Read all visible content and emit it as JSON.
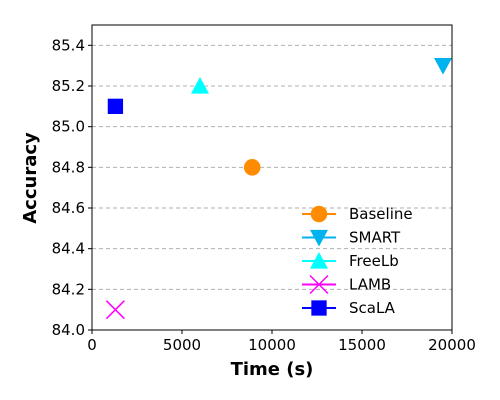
{
  "chart_data": {
    "type": "scatter",
    "title": "",
    "xlabel": "Time (s)",
    "ylabel": "Accuracy",
    "xlim": [
      0,
      20000
    ],
    "ylim": [
      84.0,
      85.5
    ],
    "x_ticks": [
      0,
      5000,
      10000,
      15000,
      20000
    ],
    "y_ticks": [
      84.0,
      84.2,
      84.4,
      84.6,
      84.8,
      85.0,
      85.2,
      85.4
    ],
    "grid": "y-dashed",
    "legend_position": "lower-right",
    "series": [
      {
        "name": "Baseline",
        "marker": "circle",
        "color": "#ff8c00",
        "points": [
          {
            "x": 8900,
            "y": 84.8
          }
        ]
      },
      {
        "name": "SMART",
        "marker": "triangle-down",
        "color": "#00b2ee",
        "points": [
          {
            "x": 19500,
            "y": 85.3
          }
        ]
      },
      {
        "name": "FreeLb",
        "marker": "triangle-up",
        "color": "#00ffff",
        "points": [
          {
            "x": 6000,
            "y": 85.2
          }
        ]
      },
      {
        "name": "LAMB",
        "marker": "x",
        "color": "#ff00ff",
        "points": [
          {
            "x": 1300,
            "y": 84.1
          }
        ]
      },
      {
        "name": "ScaLA",
        "marker": "square",
        "color": "#0000ff",
        "points": [
          {
            "x": 1300,
            "y": 85.1
          }
        ]
      }
    ]
  }
}
